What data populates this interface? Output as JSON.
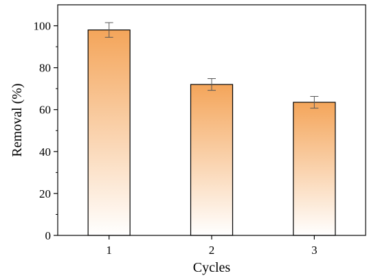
{
  "chart_data": {
    "type": "bar",
    "title": "",
    "xlabel": "Cycles",
    "ylabel": "Removal (%)",
    "categories": [
      "1",
      "2",
      "3"
    ],
    "values": [
      98,
      72,
      63.5
    ],
    "errors": [
      3.5,
      2.8,
      2.8
    ],
    "ylim": [
      0,
      110
    ],
    "yticks": [
      "0",
      "20",
      "40",
      "60",
      "80",
      "100"
    ],
    "grid": false,
    "legend": "none",
    "bar_gradient": {
      "top": "#f4a55a",
      "bottom": "#ffffff"
    },
    "bar_edge": "#000000",
    "error_color": "#555555"
  }
}
